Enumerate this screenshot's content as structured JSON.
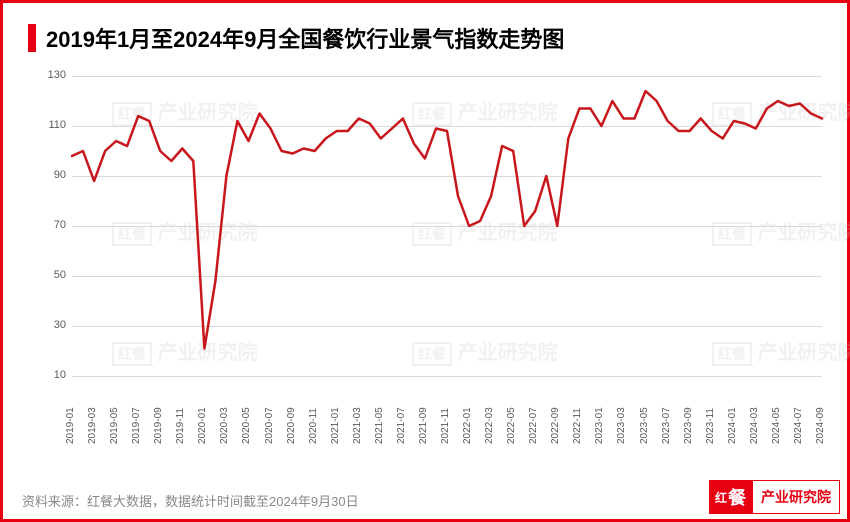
{
  "colors": {
    "frame": "#e60012",
    "accent": "#e60012",
    "line": "#c8161d",
    "grid": "#d9d9d9",
    "ylabel": "#595959",
    "xlabel": "#595959",
    "source": "#888888",
    "title": "#000000",
    "bg": "#ffffff"
  },
  "title": "2019年1月至2024年9月全国餐饮行业景气指数走势图",
  "source": "资料来源：红餐大数据，数据统计时间截至2024年9月30日",
  "brand": {
    "box_small": "红",
    "box_big": "餐",
    "text": "产业研究院"
  },
  "watermark": {
    "box": "红餐",
    "text": "产业研究院"
  },
  "chart": {
    "type": "line",
    "ylim": [
      10,
      130
    ],
    "yticks": [
      10,
      30,
      50,
      70,
      90,
      110,
      130
    ],
    "line_width": 2.5,
    "xlabels": [
      "2019-01",
      "2019-03",
      "2019-05",
      "2019-07",
      "2019-09",
      "2019-11",
      "2020-01",
      "2020-03",
      "2020-05",
      "2020-07",
      "2020-09",
      "2020-11",
      "2021-01",
      "2021-03",
      "2021-05",
      "2021-07",
      "2021-09",
      "2021-11",
      "2022-01",
      "2022-03",
      "2022-05",
      "2022-07",
      "2022-09",
      "2022-11",
      "2023-01",
      "2023-03",
      "2023-05",
      "2023-07",
      "2023-09",
      "2023-11",
      "2024-01",
      "2024-03",
      "2024-05",
      "2024-07",
      "2024-09"
    ],
    "values": [
      98,
      100,
      88,
      100,
      104,
      102,
      114,
      112,
      100,
      96,
      101,
      96,
      21,
      48,
      90,
      112,
      104,
      115,
      109,
      100,
      99,
      101,
      100,
      105,
      108,
      108,
      113,
      111,
      105,
      109,
      113,
      103,
      97,
      109,
      108,
      82,
      70,
      72,
      82,
      102,
      100,
      70,
      76,
      90,
      70,
      105,
      117,
      117,
      110,
      120,
      113,
      113,
      124,
      120,
      112,
      108,
      108,
      113,
      108,
      105,
      112,
      111,
      109,
      117,
      120,
      118,
      119,
      115,
      113
    ]
  }
}
